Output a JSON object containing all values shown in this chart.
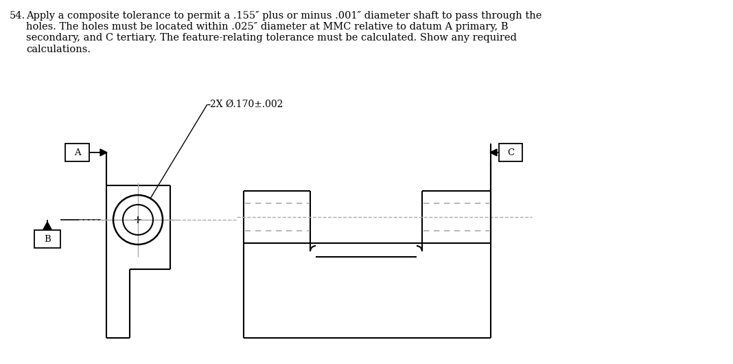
{
  "title_num": "54.",
  "title_text": "Apply a composite tolerance to permit a .155″ plus or minus .001″ diameter shaft to pass through the\nholes. The holes must be located within .025″ diameter at MMC relative to datum A primary, B\nsecondary, and C tertiary. The feature-relating tolerance must be calculated. Show any required\ncalculations.",
  "hole_label": "2X Ø.170±.002",
  "datum_A": "A",
  "datum_B": "B",
  "datum_C": "C",
  "bg_color": "#ffffff",
  "line_color": "#000000",
  "dash_color": "#aaaaaa",
  "center_line_color": "#aaaaaa",
  "text_color": "#000000",
  "font_size_body": 10.5,
  "font_size_label": 10
}
